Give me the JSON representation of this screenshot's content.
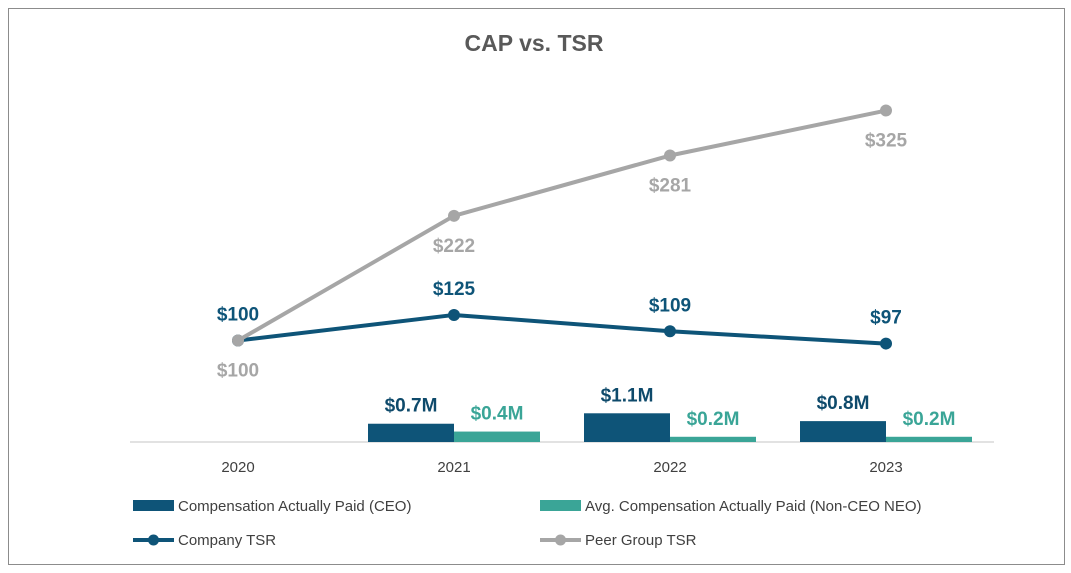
{
  "chart_data": {
    "type": "bar",
    "title": "CAP vs. TSR",
    "categories": [
      "2020",
      "2021",
      "2022",
      "2023"
    ],
    "xlabel": "",
    "ylabel": "",
    "bar_series": [
      {
        "name": "Compensation Actually Paid (CEO)",
        "values": [
          null,
          0.7,
          1.1,
          0.8
        ],
        "labels": [
          "",
          "$0.7M",
          "$1.1M",
          "$0.8M"
        ],
        "color": "#0E5478",
        "label_color": "#0E4A6B"
      },
      {
        "name": "Avg. Compensation Actually Paid (Non-CEO NEO)",
        "values": [
          null,
          0.4,
          0.2,
          0.2
        ],
        "labels": [
          "",
          "$0.4M",
          "$0.2M",
          "$0.2M"
        ],
        "color": "#3AA597",
        "label_color": "#3AA597"
      }
    ],
    "line_series": [
      {
        "name": "Company TSR",
        "values": [
          100,
          125,
          109,
          97
        ],
        "labels": [
          "$100",
          "$125",
          "$109",
          "$97"
        ],
        "color": "#0E5478"
      },
      {
        "name": "Peer Group TSR",
        "values": [
          100,
          222,
          281,
          325
        ],
        "labels": [
          "$100",
          "$222",
          "$281",
          "$325"
        ],
        "color": "#A6A6A6"
      }
    ],
    "legend": "bottom"
  }
}
